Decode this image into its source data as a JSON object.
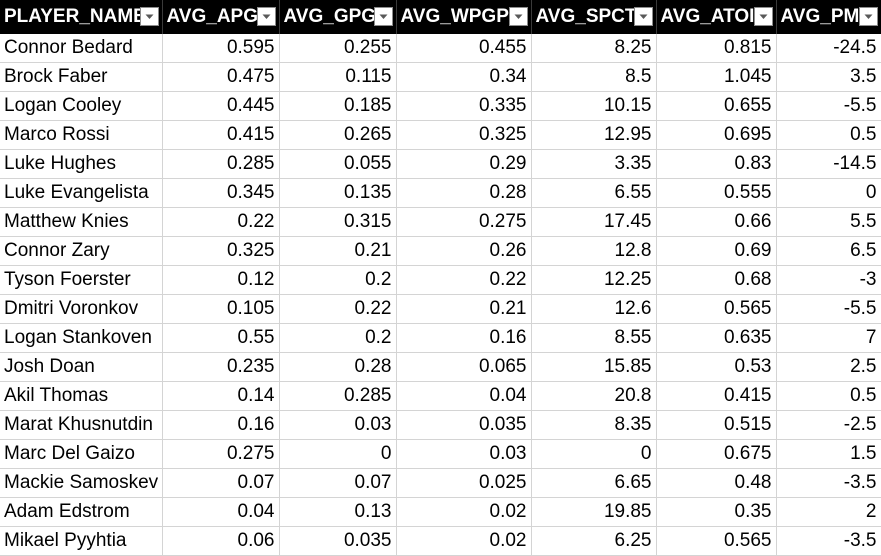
{
  "columns": [
    {
      "label": "PLAYER_NAME",
      "filter_icon": "dropdown-arrow-icon"
    },
    {
      "label": "AVG_APG",
      "filter_icon": "dropdown-arrow-icon"
    },
    {
      "label": "AVG_GPG",
      "filter_icon": "dropdown-arrow-icon"
    },
    {
      "label": "AVG_WPGP",
      "filter_icon": "dropdown-arrow-icon"
    },
    {
      "label": "AVG_SPCT",
      "filter_icon": "dropdown-arrow-icon"
    },
    {
      "label": "AVG_ATOI",
      "filter_icon": "dropdown-arrow-icon"
    },
    {
      "label": "AVG_PM",
      "filter_icon": "dropdown-arrow-icon"
    }
  ],
  "rows": [
    [
      "Connor Bedard",
      "0.595",
      "0.255",
      "0.455",
      "8.25",
      "0.815",
      "-24.5"
    ],
    [
      "Brock Faber",
      "0.475",
      "0.115",
      "0.34",
      "8.5",
      "1.045",
      "3.5"
    ],
    [
      "Logan Cooley",
      "0.445",
      "0.185",
      "0.335",
      "10.15",
      "0.655",
      "-5.5"
    ],
    [
      "Marco Rossi",
      "0.415",
      "0.265",
      "0.325",
      "12.95",
      "0.695",
      "0.5"
    ],
    [
      "Luke Hughes",
      "0.285",
      "0.055",
      "0.29",
      "3.35",
      "0.83",
      "-14.5"
    ],
    [
      "Luke Evangelista",
      "0.345",
      "0.135",
      "0.28",
      "6.55",
      "0.555",
      "0"
    ],
    [
      "Matthew Knies",
      "0.22",
      "0.315",
      "0.275",
      "17.45",
      "0.66",
      "5.5"
    ],
    [
      "Connor Zary",
      "0.325",
      "0.21",
      "0.26",
      "12.8",
      "0.69",
      "6.5"
    ],
    [
      "Tyson Foerster",
      "0.12",
      "0.2",
      "0.22",
      "12.25",
      "0.68",
      "-3"
    ],
    [
      "Dmitri Voronkov",
      "0.105",
      "0.22",
      "0.21",
      "12.6",
      "0.565",
      "-5.5"
    ],
    [
      "Logan Stankoven",
      "0.55",
      "0.2",
      "0.16",
      "8.55",
      "0.635",
      "7"
    ],
    [
      "Josh Doan",
      "0.235",
      "0.28",
      "0.065",
      "15.85",
      "0.53",
      "2.5"
    ],
    [
      "Akil Thomas",
      "0.14",
      "0.285",
      "0.04",
      "20.8",
      "0.415",
      "0.5"
    ],
    [
      "Marat Khusnutdin",
      "0.16",
      "0.03",
      "0.035",
      "8.35",
      "0.515",
      "-2.5"
    ],
    [
      "Marc Del Gaizo",
      "0.275",
      "0",
      "0.03",
      "0",
      "0.675",
      "1.5"
    ],
    [
      "Mackie Samoskev",
      "0.07",
      "0.07",
      "0.025",
      "6.65",
      "0.48",
      "-3.5"
    ],
    [
      "Adam Edstrom",
      "0.04",
      "0.13",
      "0.02",
      "19.85",
      "0.35",
      "2"
    ],
    [
      "Mikael Pyyhtia",
      "0.06",
      "0.035",
      "0.02",
      "6.25",
      "0.565",
      "-3.5"
    ]
  ]
}
